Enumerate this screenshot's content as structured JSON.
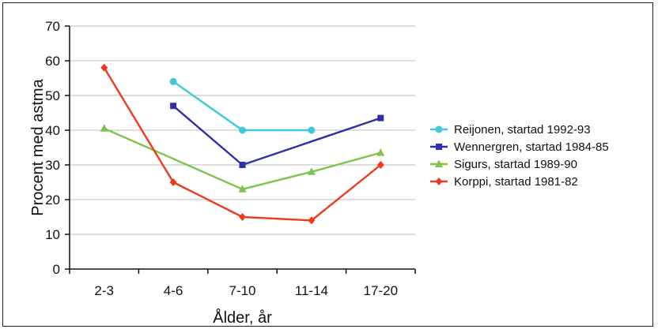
{
  "chart_data": {
    "type": "line",
    "title": "",
    "xlabel": "Ålder, år",
    "ylabel": "Procent med astma",
    "categories": [
      "2-3",
      "4-6",
      "7-10",
      "11-14",
      "17-20"
    ],
    "ylim": [
      0,
      70
    ],
    "yticks": [
      "0",
      "10",
      "20",
      "30",
      "40",
      "50",
      "60",
      "70"
    ],
    "grid": "horizontal",
    "legend_position": "right",
    "series": [
      {
        "name": "Reijonen, startad 1992-93",
        "color": "#3ec8d8",
        "marker": "circle",
        "values": [
          null,
          54,
          40,
          40,
          null
        ]
      },
      {
        "name": "Wennergren, startad 1984-85",
        "color": "#2f2fa8",
        "marker": "square",
        "values": [
          null,
          47,
          30,
          null,
          43.5
        ]
      },
      {
        "name": "Sigurs, startad 1989-90",
        "color": "#7cc44a",
        "marker": "triangle",
        "values": [
          40.5,
          null,
          23,
          28,
          33.5
        ]
      },
      {
        "name": "Korppi, startad 1981-82",
        "color": "#ee3a1c",
        "marker": "diamond",
        "values": [
          58,
          25,
          15,
          14,
          30
        ]
      }
    ]
  }
}
